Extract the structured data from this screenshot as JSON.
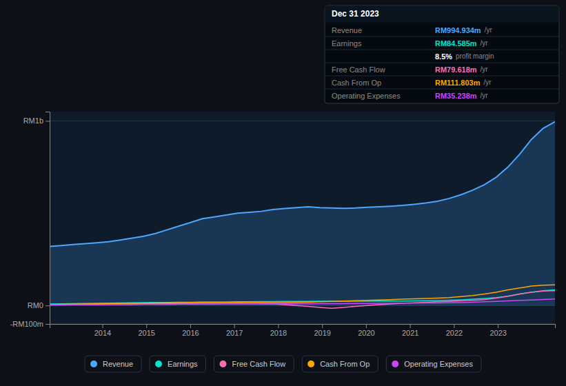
{
  "chart_data": {
    "type": "line",
    "x": [
      2012.8,
      2013.067442,
      2013.334884,
      2013.602326,
      2013.869767,
      2014.137209,
      2014.404651,
      2014.672093,
      2014.939535,
      2015.206977,
      2015.474419,
      2015.74186,
      2016.009302,
      2016.276744,
      2016.544186,
      2016.811628,
      2017.07907,
      2017.346512,
      2017.613953,
      2017.881395,
      2018.148837,
      2018.416279,
      2018.683721,
      2018.951163,
      2019.218605,
      2019.486047,
      2019.753488,
      2020.02093,
      2020.288372,
      2020.555814,
      2020.823256,
      2021.090698,
      2021.35814,
      2021.625581,
      2021.893023,
      2022.160465,
      2022.427907,
      2022.695349,
      2022.962791,
      2023.230233,
      2023.497674,
      2023.765116,
      2024.032558,
      2024.3
    ],
    "xlim": [
      2012.8,
      2024.3
    ],
    "xticks": [
      2014,
      2015,
      2016,
      2017,
      2018,
      2019,
      2020,
      2021,
      2022,
      2023
    ],
    "ylim": [
      -100,
      1050
    ],
    "yticks": [
      {
        "value": -100,
        "label": "-RM100m"
      },
      {
        "value": 0,
        "label": "RM0"
      },
      {
        "value": 1000,
        "label": "RM1b"
      }
    ],
    "grid": true,
    "legend": "bottom",
    "series": [
      {
        "name": "Revenue",
        "type": "area",
        "color": "#4da6ff",
        "values": [
          320,
          325,
          330,
          335,
          340,
          345,
          355,
          365,
          375,
          390,
          410,
          430,
          450,
          470,
          480,
          490,
          500,
          505,
          510,
          520,
          525,
          530,
          535,
          530,
          528,
          526,
          528,
          532,
          535,
          538,
          542,
          548,
          555,
          565,
          580,
          600,
          625,
          655,
          695,
          750,
          820,
          900,
          960,
          995
        ]
      },
      {
        "name": "Earnings",
        "type": "line",
        "color": "#00e5cc",
        "values": [
          8,
          9,
          10,
          11,
          12,
          13,
          14,
          15,
          16,
          17,
          17,
          18,
          18,
          19,
          19,
          19,
          20,
          20,
          21,
          21,
          22,
          22,
          22,
          23,
          23,
          23,
          23,
          23,
          24,
          24,
          24,
          25,
          26,
          27,
          29,
          31,
          34,
          38,
          43,
          50,
          62,
          72,
          80,
          85
        ]
      },
      {
        "name": "Free Cash Flow",
        "type": "line",
        "color": "#ff69b4",
        "values": [
          3,
          4,
          4,
          5,
          6,
          7,
          7,
          8,
          9,
          9,
          10,
          11,
          11,
          12,
          12,
          12,
          12,
          11,
          10,
          8,
          5,
          0,
          -5,
          -10,
          -15,
          -10,
          -5,
          0,
          5,
          8,
          12,
          15,
          18,
          20,
          22,
          25,
          28,
          32,
          40,
          50,
          62,
          72,
          78,
          80
        ]
      },
      {
        "name": "Cash From Op",
        "type": "line",
        "color": "#ffa500",
        "values": [
          5,
          6,
          7,
          8,
          9,
          10,
          11,
          12,
          13,
          14,
          15,
          16,
          17,
          18,
          18,
          18,
          18,
          18,
          17,
          16,
          16,
          17,
          18,
          20,
          22,
          24,
          26,
          28,
          30,
          32,
          34,
          36,
          38,
          40,
          43,
          48,
          54,
          62,
          72,
          85,
          95,
          105,
          110,
          112
        ]
      },
      {
        "name": "Operating Expenses",
        "type": "line",
        "color": "#cc44ff",
        "values": [
          3,
          3,
          4,
          4,
          4,
          5,
          5,
          5,
          6,
          6,
          6,
          7,
          7,
          7,
          7,
          8,
          8,
          8,
          8,
          8,
          9,
          9,
          9,
          10,
          10,
          10,
          11,
          11,
          12,
          12,
          13,
          13,
          14,
          14,
          15,
          16,
          18,
          20,
          22,
          25,
          28,
          30,
          33,
          35
        ]
      }
    ],
    "annotations": [
      {
        "text": "Dec 31 2023"
      },
      {
        "label": "Revenue",
        "text": "RM994.934m",
        "color": "#4da6ff",
        "suffix": "/yr"
      },
      {
        "label": "Earnings",
        "text": "RM84.585m",
        "color": "#00e5cc",
        "suffix": "/yr"
      },
      {
        "text": "8.5%",
        "color": "#ffffff",
        "suffix": "profit margin"
      },
      {
        "label": "Free Cash Flow",
        "text": "RM79.618m",
        "color": "#ff6eb4",
        "suffix": "/yr"
      },
      {
        "label": "Cash From Op",
        "text": "RM111.803m",
        "color": "#ffa500",
        "suffix": "/yr"
      },
      {
        "label": "Operating Expenses",
        "text": "RM35.238m",
        "color": "#cc44ff",
        "suffix": "/yr"
      }
    ]
  }
}
